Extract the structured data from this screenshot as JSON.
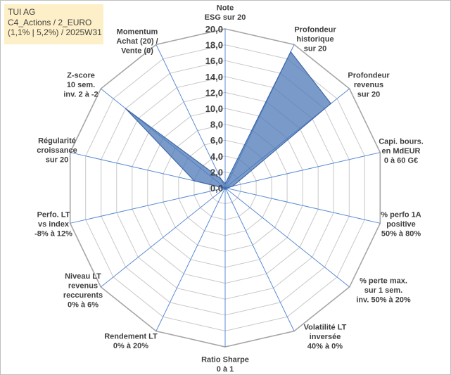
{
  "info": {
    "line1": "TUI AG",
    "line2": "C4_Actions / 2_EURO",
    "line3": "(1,1% | 5,2%) / 2025W31"
  },
  "colors": {
    "fill": "#4e79b8",
    "fill_opacity": 0.75,
    "stroke": "#3f68a8",
    "spoke": "#5b8bd4",
    "ring": "#c8c8c8",
    "outer_ring": "#a6a6a6",
    "info_bg": "#fdf0c8"
  },
  "chart_data": {
    "type": "radar",
    "ylim": [
      0,
      20
    ],
    "ticks": [
      "0,0",
      "2,0",
      "4,0",
      "6,0",
      "8,0",
      "10,0",
      "12,0",
      "14,0",
      "16,0",
      "18,0",
      "20,0"
    ],
    "axes": [
      [
        "Note",
        "ESG sur 20"
      ],
      [
        "Profondeur",
        "historique",
        "sur 20"
      ],
      [
        "Profondeur",
        "revenus",
        "sur 20"
      ],
      [
        "Capi. bours.",
        "en MdEUR",
        "0 à 60 G€"
      ],
      [
        "% perfo 1A",
        "positive",
        "50% à 80%"
      ],
      [
        "% perte max.",
        "sur 1 sem.",
        "inv. 50% à 20%"
      ],
      [
        "Volatilité LT",
        "inversée",
        "40% à 0%"
      ],
      [
        "Ratio Sharpe",
        "0 à 1"
      ],
      [
        "Rendement LT",
        "0% à 20%"
      ],
      [
        "Niveau LT",
        "revenus",
        "reccurents",
        "0% à 6%"
      ],
      [
        "Perfo. LT",
        "vs index",
        "-8% à 12%"
      ],
      [
        "Régularité",
        "croissance",
        "sur 20"
      ],
      [
        "Z-score",
        "10 sem.",
        "inv. 2 à -2"
      ],
      [
        "Momentum",
        "Achat (20) /",
        "Vente (0)"
      ]
    ],
    "values": [
      0.5,
      19.0,
      17.0,
      1.0,
      0.2,
      0.2,
      0.2,
      0.1,
      0.0,
      0.2,
      0.1,
      4.0,
      16.0,
      1.3
    ],
    "grid": true,
    "legend": "none"
  }
}
